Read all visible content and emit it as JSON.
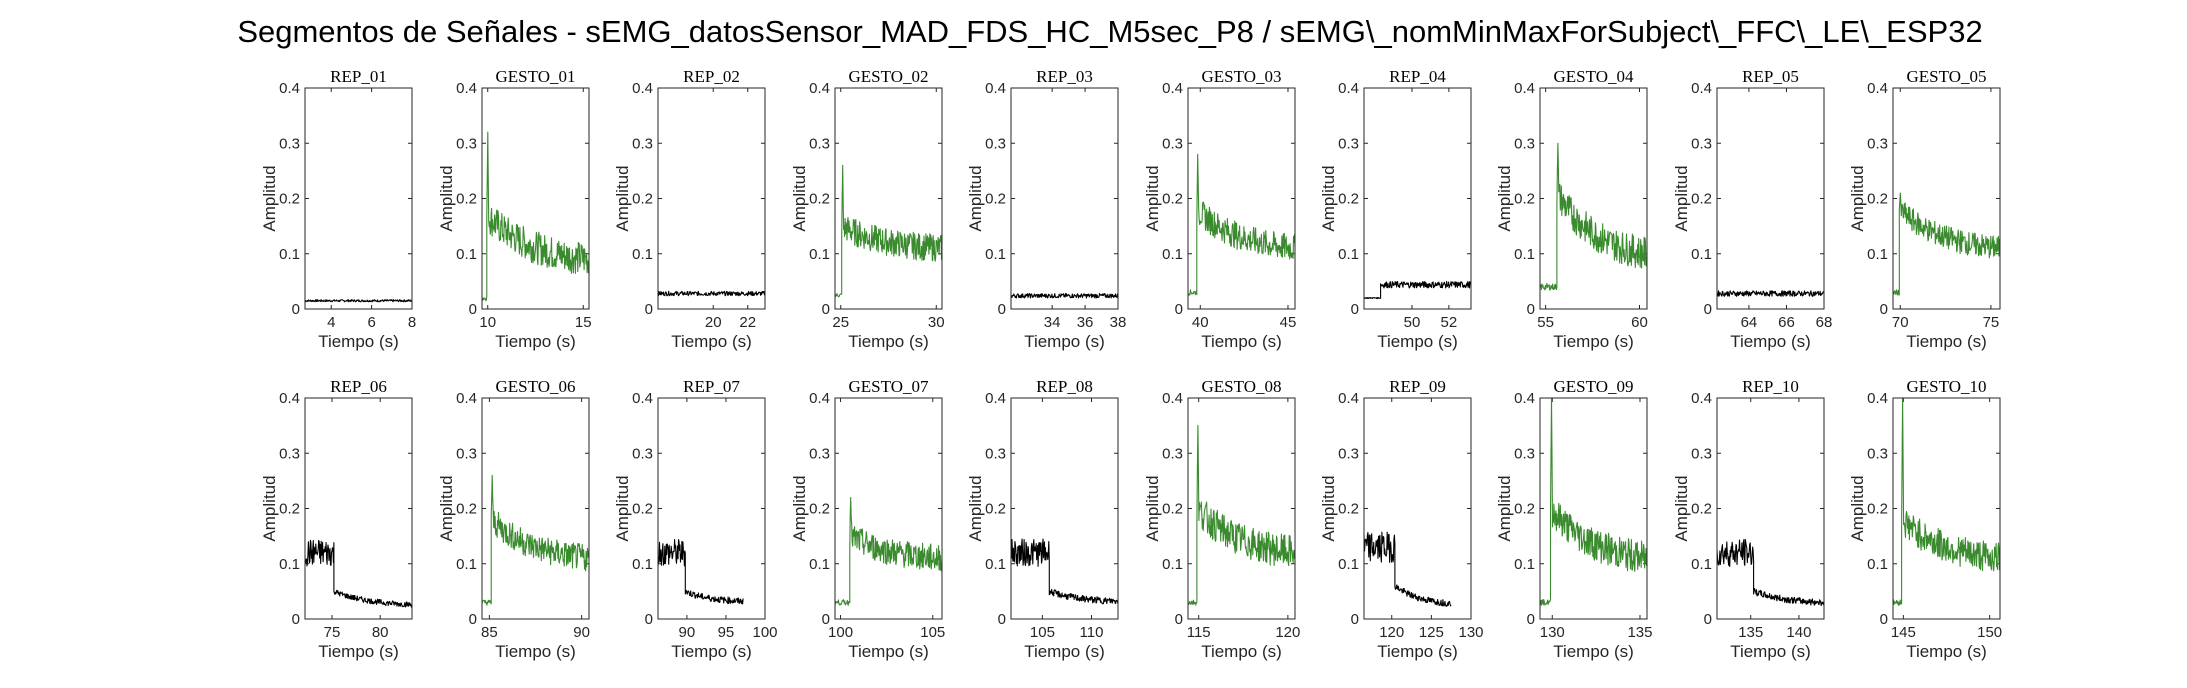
{
  "figure_title": "Segmentos de Señales - sEMG_datosSensor_MAD_FDS_HC_M5sec_P8 / sEMG\\_nomMinMaxForSubject\\_FFC\\_LE\\_ESP32",
  "colors": {
    "rep": "#000000",
    "gesto": "#3a8a2e",
    "axis": "#262626"
  },
  "chart_data": [
    {
      "type": "line",
      "title": "REP_01",
      "kind": "rep",
      "xlabel": "Tiempo (s)",
      "ylabel": "Amplitud",
      "xlim": [
        2.7,
        8
      ],
      "ylim": [
        0,
        0.4
      ],
      "xticks": [
        4,
        6,
        8
      ],
      "yticks": [
        0,
        0.1,
        0.2,
        0.3,
        0.4
      ],
      "segments": [
        {
          "t0": 2.7,
          "t1": 8,
          "base": 0.015,
          "noise": 0.002
        }
      ]
    },
    {
      "type": "line",
      "title": "GESTO_01",
      "kind": "gesto",
      "xlabel": "Tiempo (s)",
      "ylabel": "",
      "xlim": [
        9.7,
        15.3
      ],
      "ylim": [
        0,
        0.4
      ],
      "xticks": [
        10,
        15
      ],
      "yticks": [
        0,
        0.1,
        0.2,
        0.3,
        0.4
      ],
      "segments": [
        {
          "t0": 9.7,
          "t1": 9.95,
          "base": 0.02,
          "noise": 0.005
        },
        {
          "t0": 9.95,
          "t1": 15.3,
          "start": 0.17,
          "end": 0.09,
          "noise": 0.03,
          "peak": 0.32
        }
      ]
    },
    {
      "type": "line",
      "title": "REP_02",
      "kind": "rep",
      "xlabel": "Tiempo (s)",
      "ylabel": "Amplitud",
      "xlim": [
        16.8,
        23
      ],
      "ylim": [
        0,
        0.4
      ],
      "xticks": [
        20,
        22
      ],
      "yticks": [
        0,
        0.1,
        0.2,
        0.3,
        0.4
      ],
      "segments": [
        {
          "t0": 16.8,
          "t1": 23,
          "base": 0.028,
          "noise": 0.004
        }
      ]
    },
    {
      "type": "line",
      "title": "GESTO_02",
      "kind": "gesto",
      "xlabel": "Tiempo (s)",
      "ylabel": "",
      "xlim": [
        24.7,
        30.3
      ],
      "ylim": [
        0,
        0.4
      ],
      "xticks": [
        25,
        30
      ],
      "yticks": [
        0,
        0.1,
        0.2,
        0.3,
        0.4
      ],
      "segments": [
        {
          "t0": 24.7,
          "t1": 25.05,
          "base": 0.025,
          "noise": 0.004
        },
        {
          "t0": 25.05,
          "t1": 30.3,
          "start": 0.15,
          "end": 0.11,
          "noise": 0.025,
          "peak": 0.26
        }
      ]
    },
    {
      "type": "line",
      "title": "REP_03",
      "kind": "rep",
      "xlabel": "Tiempo (s)",
      "ylabel": "Amplitud",
      "xlim": [
        31.5,
        38
      ],
      "ylim": [
        0,
        0.4
      ],
      "xticks": [
        34,
        36,
        38
      ],
      "yticks": [
        0,
        0.1,
        0.2,
        0.3,
        0.4
      ],
      "segments": [
        {
          "t0": 31.5,
          "t1": 38,
          "base": 0.024,
          "noise": 0.004
        }
      ]
    },
    {
      "type": "line",
      "title": "GESTO_03",
      "kind": "gesto",
      "xlabel": "Tiempo (s)",
      "ylabel": "",
      "xlim": [
        39.3,
        45.4
      ],
      "ylim": [
        0,
        0.4
      ],
      "xticks": [
        40,
        45
      ],
      "yticks": [
        0,
        0.1,
        0.2,
        0.3,
        0.4
      ],
      "segments": [
        {
          "t0": 39.3,
          "t1": 39.8,
          "base": 0.03,
          "noise": 0.005
        },
        {
          "t0": 39.8,
          "t1": 45.4,
          "start": 0.18,
          "end": 0.11,
          "noise": 0.025,
          "peak": 0.28
        }
      ]
    },
    {
      "type": "line",
      "title": "REP_04",
      "kind": "rep",
      "xlabel": "Tiempo (s)",
      "ylabel": "Amplitud",
      "xlim": [
        47.4,
        53.2
      ],
      "ylim": [
        0,
        0.4
      ],
      "xticks": [
        50,
        52
      ],
      "yticks": [
        0,
        0.1,
        0.2,
        0.3,
        0.4
      ],
      "segments": [
        {
          "t0": 47.4,
          "t1": 48.3,
          "base": 0.02,
          "noise": 0.001
        },
        {
          "t0": 48.3,
          "t1": 53.2,
          "base": 0.044,
          "noise": 0.006
        }
      ]
    },
    {
      "type": "line",
      "title": "GESTO_04",
      "kind": "gesto",
      "xlabel": "Tiempo (s)",
      "ylabel": "",
      "xlim": [
        54.7,
        60.4
      ],
      "ylim": [
        0,
        0.4
      ],
      "xticks": [
        55,
        60
      ],
      "yticks": [
        0,
        0.1,
        0.2,
        0.3,
        0.4
      ],
      "segments": [
        {
          "t0": 54.7,
          "t1": 55.6,
          "base": 0.04,
          "noise": 0.006
        },
        {
          "t0": 55.6,
          "t1": 60.4,
          "start": 0.21,
          "end": 0.1,
          "noise": 0.03,
          "peak": 0.3
        }
      ]
    },
    {
      "type": "line",
      "title": "REP_05",
      "kind": "rep",
      "xlabel": "Tiempo (s)",
      "ylabel": "Amplitud",
      "xlim": [
        62.3,
        68
      ],
      "ylim": [
        0,
        0.4
      ],
      "xticks": [
        64,
        66,
        68
      ],
      "yticks": [
        0,
        0.1,
        0.2,
        0.3,
        0.4
      ],
      "segments": [
        {
          "t0": 62.3,
          "t1": 68,
          "base": 0.028,
          "noise": 0.005
        }
      ]
    },
    {
      "type": "line",
      "title": "GESTO_05",
      "kind": "gesto",
      "xlabel": "Tiempo (s)",
      "ylabel": "",
      "xlim": [
        69.6,
        75.5
      ],
      "ylim": [
        0,
        0.4
      ],
      "xticks": [
        70,
        75
      ],
      "yticks": [
        0,
        0.1,
        0.2,
        0.3,
        0.4
      ],
      "segments": [
        {
          "t0": 69.6,
          "t1": 69.95,
          "base": 0.03,
          "noise": 0.005
        },
        {
          "t0": 69.95,
          "t1": 75.5,
          "start": 0.18,
          "end": 0.11,
          "noise": 0.022,
          "peak": 0.21
        }
      ]
    },
    {
      "type": "line",
      "title": "REP_06",
      "kind": "rep",
      "xlabel": "Tiempo (s)",
      "ylabel": "Amplitud",
      "xlim": [
        72.2,
        83.3
      ],
      "ylim": [
        0,
        0.4
      ],
      "xticks": [
        75,
        80
      ],
      "yticks": [
        0,
        0.1,
        0.2,
        0.3,
        0.4
      ],
      "segments": [
        {
          "t0": 72.2,
          "t1": 75.2,
          "base": 0.12,
          "noise": 0.025
        },
        {
          "t0": 75.2,
          "t1": 83.3,
          "start": 0.05,
          "end": 0.026,
          "noise": 0.005
        }
      ]
    },
    {
      "type": "line",
      "title": "GESTO_06",
      "kind": "gesto",
      "xlabel": "Tiempo (s)",
      "ylabel": "",
      "xlim": [
        84.6,
        90.4
      ],
      "ylim": [
        0,
        0.4
      ],
      "xticks": [
        85,
        90
      ],
      "yticks": [
        0,
        0.1,
        0.2,
        0.3,
        0.4
      ],
      "segments": [
        {
          "t0": 84.6,
          "t1": 85.1,
          "base": 0.03,
          "noise": 0.005
        },
        {
          "t0": 85.1,
          "t1": 90.4,
          "start": 0.18,
          "end": 0.11,
          "noise": 0.025,
          "peak": 0.26
        }
      ]
    },
    {
      "type": "line",
      "title": "REP_07",
      "kind": "rep",
      "xlabel": "Tiempo (s)",
      "ylabel": "Amplitud",
      "xlim": [
        86.3,
        100
      ],
      "ylim": [
        0,
        0.4
      ],
      "xticks": [
        90,
        95,
        100
      ],
      "yticks": [
        0,
        0.1,
        0.2,
        0.3,
        0.4
      ],
      "segments": [
        {
          "t0": 86.3,
          "t1": 89.8,
          "base": 0.12,
          "noise": 0.025
        },
        {
          "t0": 89.8,
          "t1": 97.2,
          "start": 0.05,
          "end": 0.032,
          "noise": 0.006
        }
      ]
    },
    {
      "type": "line",
      "title": "GESTO_07",
      "kind": "gesto",
      "xlabel": "Tiempo (s)",
      "ylabel": "",
      "xlim": [
        99.7,
        105.5
      ],
      "ylim": [
        0,
        0.4
      ],
      "xticks": [
        100,
        105
      ],
      "yticks": [
        0,
        0.1,
        0.2,
        0.3,
        0.4
      ],
      "segments": [
        {
          "t0": 99.7,
          "t1": 100.5,
          "base": 0.03,
          "noise": 0.005
        },
        {
          "t0": 100.5,
          "t1": 105.5,
          "start": 0.15,
          "end": 0.11,
          "noise": 0.025,
          "peak": 0.22
        }
      ]
    },
    {
      "type": "line",
      "title": "REP_08",
      "kind": "rep",
      "xlabel": "Tiempo (s)",
      "ylabel": "Amplitud",
      "xlim": [
        101.8,
        112.7
      ],
      "ylim": [
        0,
        0.4
      ],
      "xticks": [
        105,
        110
      ],
      "yticks": [
        0,
        0.1,
        0.2,
        0.3,
        0.4
      ],
      "segments": [
        {
          "t0": 101.8,
          "t1": 105.7,
          "base": 0.12,
          "noise": 0.025
        },
        {
          "t0": 105.7,
          "t1": 112.7,
          "start": 0.05,
          "end": 0.032,
          "noise": 0.006
        }
      ]
    },
    {
      "type": "line",
      "title": "GESTO_08",
      "kind": "gesto",
      "xlabel": "Tiempo (s)",
      "ylabel": "",
      "xlim": [
        114.4,
        120.4
      ],
      "ylim": [
        0,
        0.4
      ],
      "xticks": [
        115,
        120
      ],
      "yticks": [
        0,
        0.1,
        0.2,
        0.3,
        0.4
      ],
      "segments": [
        {
          "t0": 114.4,
          "t1": 114.9,
          "base": 0.03,
          "noise": 0.005
        },
        {
          "t0": 114.9,
          "t1": 120.4,
          "start": 0.2,
          "end": 0.12,
          "noise": 0.03,
          "peak": 0.35
        }
      ]
    },
    {
      "type": "line",
      "title": "REP_09",
      "kind": "rep",
      "xlabel": "Tiempo (s)",
      "ylabel": "Amplitud",
      "xlim": [
        116.5,
        130
      ],
      "ylim": [
        0,
        0.4
      ],
      "xticks": [
        120,
        125,
        130
      ],
      "yticks": [
        0,
        0.1,
        0.2,
        0.3,
        0.4
      ],
      "segments": [
        {
          "t0": 116.5,
          "t1": 120.4,
          "base": 0.13,
          "noise": 0.028
        },
        {
          "t0": 120.4,
          "t1": 127.5,
          "start": 0.06,
          "end": 0.028,
          "noise": 0.006
        }
      ]
    },
    {
      "type": "line",
      "title": "GESTO_09",
      "kind": "gesto",
      "xlabel": "Tiempo (s)",
      "ylabel": "",
      "xlim": [
        129.3,
        135.4
      ],
      "ylim": [
        0,
        0.4
      ],
      "xticks": [
        130,
        135
      ],
      "yticks": [
        0,
        0.1,
        0.2,
        0.3,
        0.4
      ],
      "segments": [
        {
          "t0": 129.3,
          "t1": 129.9,
          "base": 0.03,
          "noise": 0.005
        },
        {
          "t0": 129.9,
          "t1": 135.4,
          "start": 0.2,
          "end": 0.11,
          "noise": 0.03,
          "peak": 0.4
        }
      ]
    },
    {
      "type": "line",
      "title": "REP_10",
      "kind": "rep",
      "xlabel": "Tiempo (s)",
      "ylabel": "Amplitud",
      "xlim": [
        131.5,
        142.6
      ],
      "ylim": [
        0,
        0.4
      ],
      "xticks": [
        135,
        140
      ],
      "yticks": [
        0,
        0.1,
        0.2,
        0.3,
        0.4
      ],
      "segments": [
        {
          "t0": 131.5,
          "t1": 135.3,
          "base": 0.12,
          "noise": 0.025
        },
        {
          "t0": 135.3,
          "t1": 142.6,
          "start": 0.05,
          "end": 0.03,
          "noise": 0.006
        }
      ]
    },
    {
      "type": "line",
      "title": "GESTO_10",
      "kind": "gesto",
      "xlabel": "Tiempo (s)",
      "ylabel": "",
      "xlim": [
        144.4,
        150.6
      ],
      "ylim": [
        0,
        0.4
      ],
      "xticks": [
        145,
        150
      ],
      "yticks": [
        0,
        0.1,
        0.2,
        0.3,
        0.4
      ],
      "segments": [
        {
          "t0": 144.4,
          "t1": 144.9,
          "base": 0.03,
          "noise": 0.005
        },
        {
          "t0": 144.9,
          "t1": 150.6,
          "start": 0.18,
          "end": 0.11,
          "noise": 0.028,
          "peak": 0.4
        }
      ]
    }
  ]
}
